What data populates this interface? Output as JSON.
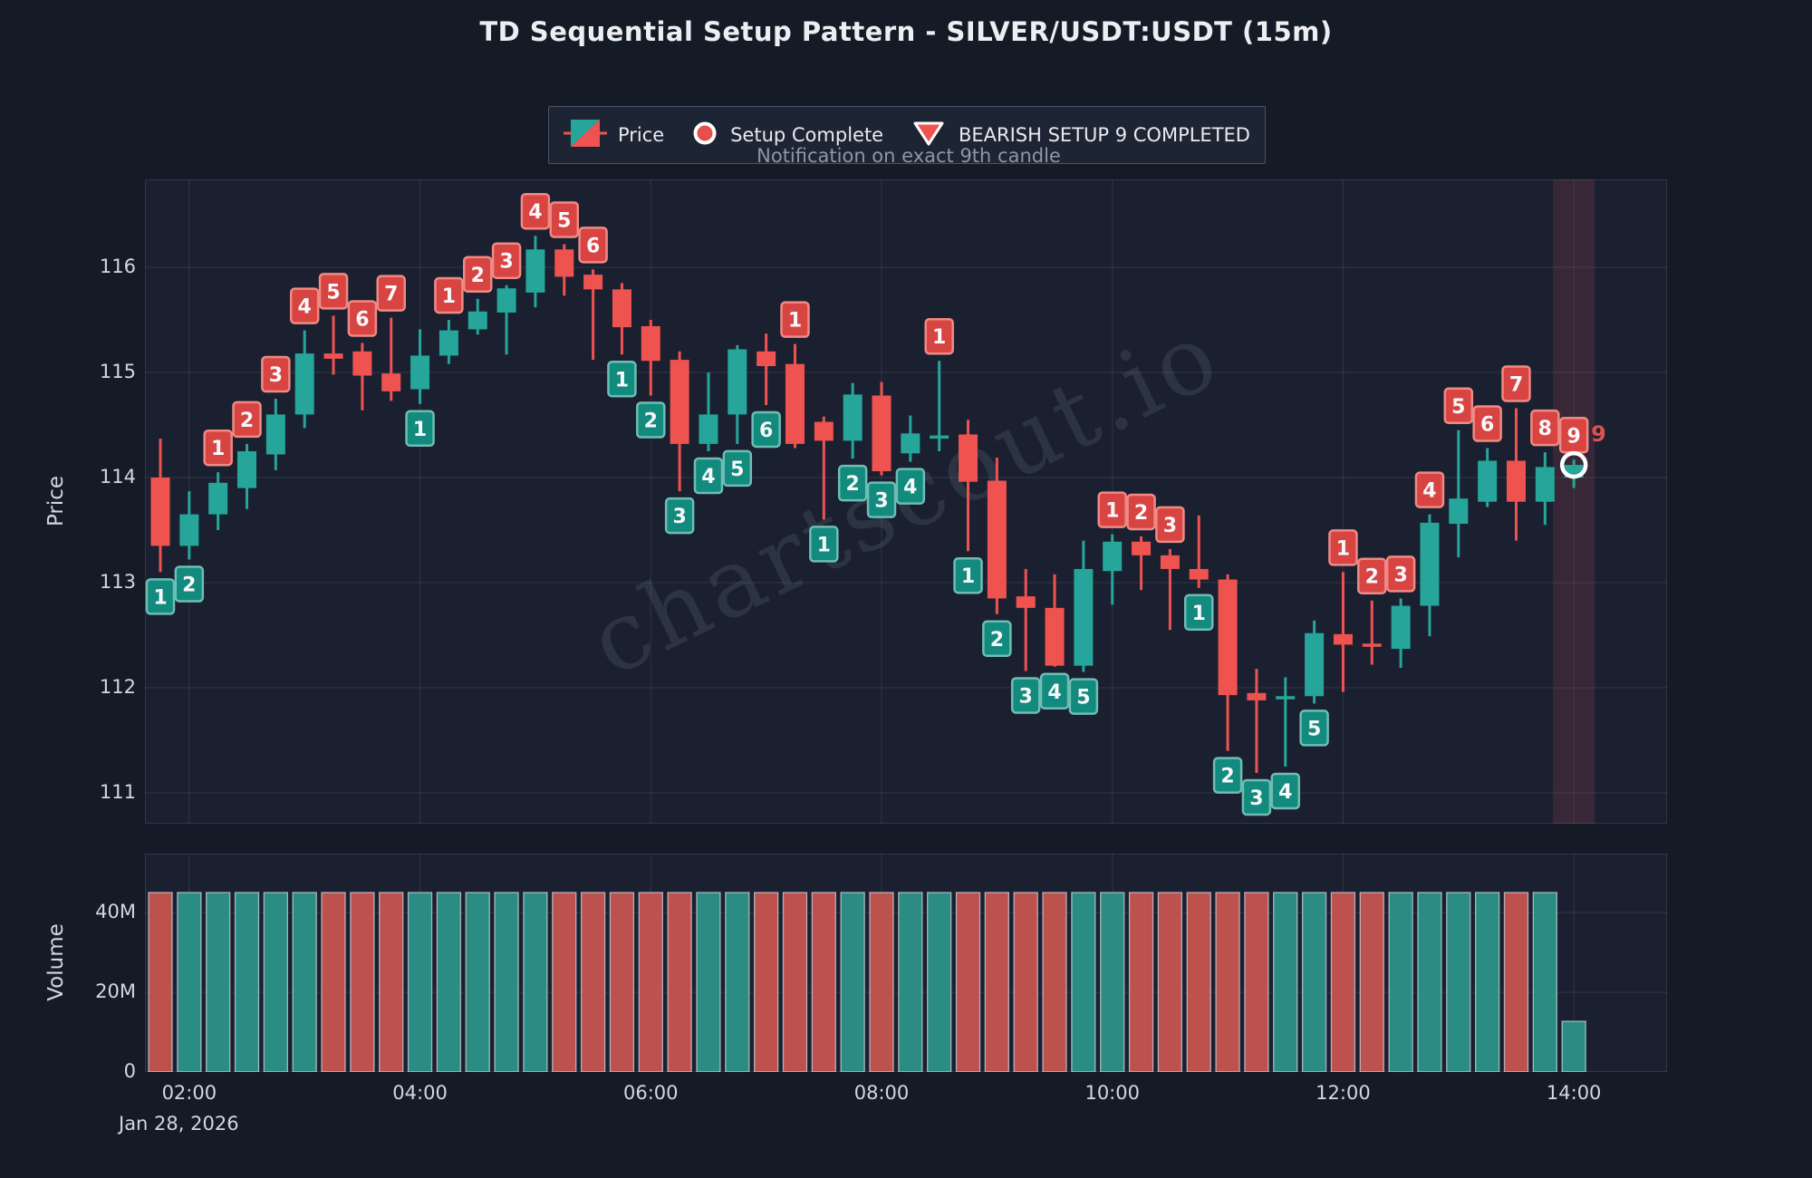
{
  "title": "TD Sequential Setup Pattern - SILVER/USDT:USDT (15m)",
  "subtitle": "Notification on exact 9th candle",
  "watermark": "chartscout.io",
  "legend": {
    "price_label": "Price",
    "setup_complete_label": "Setup Complete",
    "bearish_label": "BEARISH SETUP 9 COMPLETED"
  },
  "axes": {
    "price_label": "Price",
    "volume_label": "Volume",
    "date_label": "Jan 28, 2026",
    "price_ticks": [
      111,
      112,
      113,
      114,
      115,
      116
    ],
    "volume_ticks": [
      {
        "label": "0",
        "value_m": 0
      },
      {
        "label": "20M",
        "value_m": 20
      },
      {
        "label": "40M",
        "value_m": 40
      }
    ],
    "time_ticks": [
      "02:00",
      "04:00",
      "06:00",
      "08:00",
      "10:00",
      "12:00",
      "14:00"
    ]
  },
  "colors": {
    "figure_bg": "#151a27",
    "plot_bg": "#1a2030",
    "grid": "rgba(255,255,255,0.07)",
    "plot_border": "rgba(255,255,255,0.10)",
    "up": "#26a69a",
    "down": "#ef5350",
    "vol_up": "#2b8c83",
    "vol_down": "#bd514e",
    "vol_edge": "rgba(205,213,222,0.75)",
    "badge_buy_bg": "#128a7d",
    "badge_buy_edge": "#6fbdb4",
    "badge_sell_bg": "#d84442",
    "badge_sell_edge": "#ee8a85",
    "badge_text": "#f7f8fa",
    "highlight_band": "rgba(236,86,100,0.14)",
    "marker_ring": "#ffffff",
    "annotation": "#e0514e",
    "watermark": "rgba(150,160,180,0.15)"
  },
  "chart_data": {
    "type": "candlestick_with_volume",
    "symbol": "SILVER/USDT:USDT",
    "timeframe": "15m",
    "date": "Jan 28, 2026",
    "price_axis": {
      "ylim": [
        110.7,
        116.85
      ],
      "gridlines": [
        111,
        112,
        113,
        114,
        115,
        116
      ]
    },
    "volume_axis": {
      "ylim_m": [
        0,
        54
      ],
      "gridlines_m": [
        20,
        40
      ]
    },
    "annotation_9": "9",
    "highlight": {
      "at_time": "14:00",
      "note": "bearish setup 9 completed candle"
    },
    "candles": [
      {
        "t": "01:45",
        "o": 114.0,
        "h": 114.37,
        "l": 113.1,
        "c": 113.35,
        "v": 45,
        "setup": "buy-1"
      },
      {
        "t": "02:00",
        "o": 113.35,
        "h": 113.87,
        "l": 113.22,
        "c": 113.65,
        "v": 45,
        "setup": "buy-2"
      },
      {
        "t": "02:15",
        "o": 113.65,
        "h": 114.05,
        "l": 113.5,
        "c": 113.95,
        "v": 45,
        "setup": "sell-1"
      },
      {
        "t": "02:30",
        "o": 113.9,
        "h": 114.32,
        "l": 113.7,
        "c": 114.25,
        "v": 45,
        "setup": "sell-2"
      },
      {
        "t": "02:45",
        "o": 114.22,
        "h": 114.75,
        "l": 114.07,
        "c": 114.6,
        "v": 45,
        "setup": "sell-3"
      },
      {
        "t": "03:00",
        "o": 114.6,
        "h": 115.4,
        "l": 114.47,
        "c": 115.18,
        "v": 45,
        "setup": "sell-4"
      },
      {
        "t": "03:15",
        "o": 115.18,
        "h": 115.54,
        "l": 114.98,
        "c": 115.13,
        "v": 45,
        "setup": "sell-5"
      },
      {
        "t": "03:30",
        "o": 115.2,
        "h": 115.28,
        "l": 114.64,
        "c": 114.97,
        "v": 45,
        "setup": "sell-6"
      },
      {
        "t": "03:45",
        "o": 114.99,
        "h": 115.52,
        "l": 114.73,
        "c": 114.82,
        "v": 45,
        "setup": "sell-7"
      },
      {
        "t": "04:00",
        "o": 114.84,
        "h": 115.41,
        "l": 114.7,
        "c": 115.16,
        "v": 45,
        "setup": "buy-1"
      },
      {
        "t": "04:15",
        "o": 115.16,
        "h": 115.5,
        "l": 115.08,
        "c": 115.4,
        "v": 45,
        "setup": "sell-1"
      },
      {
        "t": "04:30",
        "o": 115.41,
        "h": 115.7,
        "l": 115.36,
        "c": 115.58,
        "v": 45,
        "setup": "sell-2"
      },
      {
        "t": "04:45",
        "o": 115.57,
        "h": 115.83,
        "l": 115.17,
        "c": 115.8,
        "v": 45,
        "setup": "sell-3"
      },
      {
        "t": "05:00",
        "o": 115.76,
        "h": 116.3,
        "l": 115.62,
        "c": 116.17,
        "v": 45,
        "setup": "sell-4"
      },
      {
        "t": "05:15",
        "o": 116.17,
        "h": 116.22,
        "l": 115.73,
        "c": 115.91,
        "v": 45,
        "setup": "sell-5"
      },
      {
        "t": "05:30",
        "o": 115.93,
        "h": 115.98,
        "l": 115.12,
        "c": 115.79,
        "v": 45,
        "setup": "sell-6"
      },
      {
        "t": "05:45",
        "o": 115.79,
        "h": 115.85,
        "l": 115.17,
        "c": 115.43,
        "v": 45,
        "setup": "buy-1"
      },
      {
        "t": "06:00",
        "o": 115.44,
        "h": 115.5,
        "l": 114.78,
        "c": 115.11,
        "v": 45,
        "setup": "buy-2"
      },
      {
        "t": "06:15",
        "o": 115.12,
        "h": 115.2,
        "l": 113.87,
        "c": 114.32,
        "v": 45,
        "setup": "buy-3"
      },
      {
        "t": "06:30",
        "o": 114.32,
        "h": 115.0,
        "l": 114.25,
        "c": 114.6,
        "v": 45,
        "setup": "buy-4"
      },
      {
        "t": "06:45",
        "o": 114.6,
        "h": 115.26,
        "l": 114.32,
        "c": 115.22,
        "v": 45,
        "setup": "buy-5"
      },
      {
        "t": "07:00",
        "o": 115.2,
        "h": 115.37,
        "l": 114.69,
        "c": 115.06,
        "v": 45,
        "setup": "buy-6"
      },
      {
        "t": "07:15",
        "o": 115.08,
        "h": 115.27,
        "l": 114.28,
        "c": 114.32,
        "v": 45,
        "setup": "sell-1"
      },
      {
        "t": "07:30",
        "o": 114.53,
        "h": 114.58,
        "l": 113.6,
        "c": 114.35,
        "v": 45,
        "setup": "buy-1"
      },
      {
        "t": "07:45",
        "o": 114.35,
        "h": 114.9,
        "l": 114.18,
        "c": 114.79,
        "v": 45,
        "setup": "buy-2"
      },
      {
        "t": "08:00",
        "o": 114.78,
        "h": 114.91,
        "l": 114.02,
        "c": 114.06,
        "v": 45,
        "setup": "buy-3"
      },
      {
        "t": "08:15",
        "o": 114.23,
        "h": 114.59,
        "l": 114.15,
        "c": 114.42,
        "v": 45,
        "setup": "buy-4"
      },
      {
        "t": "08:30",
        "o": 114.38,
        "h": 115.11,
        "l": 114.25,
        "c": 114.4,
        "v": 45,
        "setup": "sell-1"
      },
      {
        "t": "08:45",
        "o": 114.41,
        "h": 114.55,
        "l": 113.3,
        "c": 113.96,
        "v": 45,
        "setup": "buy-1"
      },
      {
        "t": "09:00",
        "o": 113.97,
        "h": 114.19,
        "l": 112.7,
        "c": 112.85,
        "v": 45,
        "setup": "buy-2"
      },
      {
        "t": "09:15",
        "o": 112.87,
        "h": 113.13,
        "l": 112.16,
        "c": 112.76,
        "v": 45,
        "setup": "buy-3"
      },
      {
        "t": "09:30",
        "o": 112.76,
        "h": 113.08,
        "l": 112.2,
        "c": 112.21,
        "v": 45,
        "setup": "buy-4"
      },
      {
        "t": "09:45",
        "o": 112.21,
        "h": 113.4,
        "l": 112.15,
        "c": 113.13,
        "v": 45,
        "setup": "buy-5"
      },
      {
        "t": "10:00",
        "o": 113.11,
        "h": 113.46,
        "l": 112.79,
        "c": 113.39,
        "v": 45,
        "setup": "sell-1"
      },
      {
        "t": "10:15",
        "o": 113.39,
        "h": 113.44,
        "l": 112.93,
        "c": 113.26,
        "v": 45,
        "setup": "sell-2"
      },
      {
        "t": "10:30",
        "o": 113.26,
        "h": 113.32,
        "l": 112.55,
        "c": 113.13,
        "v": 45,
        "setup": "sell-3"
      },
      {
        "t": "10:45",
        "o": 113.13,
        "h": 113.64,
        "l": 112.95,
        "c": 113.03,
        "v": 45,
        "setup": "buy-1"
      },
      {
        "t": "11:00",
        "o": 113.03,
        "h": 113.08,
        "l": 111.4,
        "c": 111.93,
        "v": 45,
        "setup": "buy-2"
      },
      {
        "t": "11:15",
        "o": 111.95,
        "h": 112.18,
        "l": 111.19,
        "c": 111.88,
        "v": 45,
        "setup": "buy-3"
      },
      {
        "t": "11:30",
        "o": 111.9,
        "h": 112.1,
        "l": 111.25,
        "c": 111.92,
        "v": 45,
        "setup": "buy-4"
      },
      {
        "t": "11:45",
        "o": 111.92,
        "h": 112.64,
        "l": 111.85,
        "c": 112.52,
        "v": 45,
        "setup": "buy-5"
      },
      {
        "t": "12:00",
        "o": 112.51,
        "h": 113.1,
        "l": 111.96,
        "c": 112.41,
        "v": 45,
        "setup": "sell-1"
      },
      {
        "t": "12:15",
        "o": 112.42,
        "h": 112.83,
        "l": 112.22,
        "c": 112.4,
        "v": 45,
        "setup": "sell-2"
      },
      {
        "t": "12:30",
        "o": 112.37,
        "h": 112.85,
        "l": 112.19,
        "c": 112.78,
        "v": 45,
        "setup": "sell-3"
      },
      {
        "t": "12:45",
        "o": 112.78,
        "h": 113.65,
        "l": 112.49,
        "c": 113.57,
        "v": 45,
        "setup": "sell-4"
      },
      {
        "t": "13:00",
        "o": 113.56,
        "h": 114.45,
        "l": 113.24,
        "c": 113.8,
        "v": 45,
        "setup": "sell-5"
      },
      {
        "t": "13:15",
        "o": 113.77,
        "h": 114.28,
        "l": 113.72,
        "c": 114.16,
        "v": 45,
        "setup": "sell-6"
      },
      {
        "t": "13:30",
        "o": 114.16,
        "h": 114.66,
        "l": 113.4,
        "c": 113.77,
        "v": 45,
        "setup": "sell-7"
      },
      {
        "t": "13:45",
        "o": 113.77,
        "h": 114.24,
        "l": 113.55,
        "c": 114.1,
        "v": 45,
        "setup": "sell-8"
      },
      {
        "t": "14:00",
        "o": 114.0,
        "h": 114.17,
        "l": 113.9,
        "c": 114.12,
        "v": 12.7,
        "setup": "sell-9",
        "marker": "setup_complete"
      }
    ]
  }
}
